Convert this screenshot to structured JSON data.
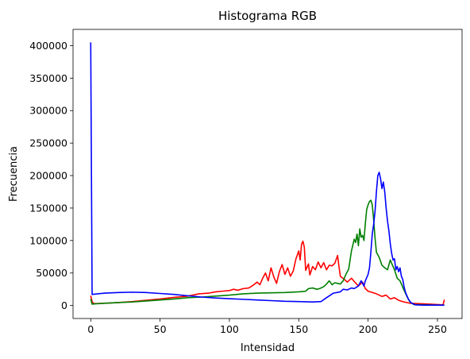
{
  "chart_data": {
    "type": "line",
    "title": "Histograma RGB",
    "xlabel": "Intensidad",
    "ylabel": "Frecuencia",
    "xlim": [
      -12.75,
      267.75
    ],
    "ylim": [
      -20000,
      425000
    ],
    "xticks": [
      0,
      50,
      100,
      150,
      200,
      250
    ],
    "yticks": [
      0,
      50000,
      100000,
      150000,
      200000,
      250000,
      300000,
      350000,
      400000
    ],
    "grid": false,
    "legend": "none",
    "series": [
      {
        "color": "#ff0000",
        "points": [
          [
            0,
            15000
          ],
          [
            1,
            6000
          ],
          [
            2,
            3000
          ],
          [
            5,
            3000
          ],
          [
            10,
            3500
          ],
          [
            20,
            4500
          ],
          [
            30,
            6000
          ],
          [
            40,
            8000
          ],
          [
            50,
            10000
          ],
          [
            60,
            12500
          ],
          [
            70,
            14500
          ],
          [
            78,
            18000
          ],
          [
            85,
            19000
          ],
          [
            90,
            21000
          ],
          [
            95,
            22000
          ],
          [
            100,
            23000
          ],
          [
            103,
            25000
          ],
          [
            106,
            23500
          ],
          [
            110,
            26000
          ],
          [
            114,
            27000
          ],
          [
            117,
            31000
          ],
          [
            120,
            36000
          ],
          [
            122,
            32000
          ],
          [
            124,
            42000
          ],
          [
            126,
            50000
          ],
          [
            128,
            38000
          ],
          [
            130,
            58000
          ],
          [
            132,
            44000
          ],
          [
            134,
            34000
          ],
          [
            136,
            52000
          ],
          [
            138,
            63000
          ],
          [
            140,
            48000
          ],
          [
            142,
            58000
          ],
          [
            144,
            45000
          ],
          [
            146,
            53000
          ],
          [
            148,
            72000
          ],
          [
            150,
            84000
          ],
          [
            151,
            70000
          ],
          [
            152,
            94000
          ],
          [
            153,
            99000
          ],
          [
            154,
            90000
          ],
          [
            155,
            54000
          ],
          [
            157,
            64000
          ],
          [
            158,
            47000
          ],
          [
            160,
            60000
          ],
          [
            162,
            55000
          ],
          [
            164,
            67000
          ],
          [
            166,
            58000
          ],
          [
            168,
            66000
          ],
          [
            170,
            55000
          ],
          [
            172,
            62000
          ],
          [
            174,
            61000
          ],
          [
            176,
            65000
          ],
          [
            178,
            77000
          ],
          [
            179,
            60000
          ],
          [
            180,
            45000
          ],
          [
            183,
            40000
          ],
          [
            185,
            36000
          ],
          [
            188,
            42000
          ],
          [
            190,
            37000
          ],
          [
            193,
            30000
          ],
          [
            196,
            36000
          ],
          [
            198,
            26000
          ],
          [
            200,
            22000
          ],
          [
            203,
            20000
          ],
          [
            206,
            18000
          ],
          [
            210,
            14000
          ],
          [
            213,
            16000
          ],
          [
            216,
            10000
          ],
          [
            219,
            12000
          ],
          [
            222,
            8000
          ],
          [
            225,
            6000
          ],
          [
            230,
            3500
          ],
          [
            240,
            2500
          ],
          [
            250,
            1500
          ],
          [
            254,
            1000
          ],
          [
            255,
            9000
          ]
        ]
      },
      {
        "color": "#008000",
        "points": [
          [
            0,
            10000
          ],
          [
            1,
            2000
          ],
          [
            3,
            2500
          ],
          [
            10,
            3500
          ],
          [
            20,
            4500
          ],
          [
            30,
            5500
          ],
          [
            40,
            7000
          ],
          [
            50,
            8500
          ],
          [
            60,
            10000
          ],
          [
            70,
            12000
          ],
          [
            80,
            13000
          ],
          [
            90,
            14500
          ],
          [
            100,
            16000
          ],
          [
            110,
            18000
          ],
          [
            120,
            19000
          ],
          [
            130,
            19500
          ],
          [
            140,
            20000
          ],
          [
            150,
            21000
          ],
          [
            155,
            22000
          ],
          [
            157,
            26000
          ],
          [
            160,
            27000
          ],
          [
            163,
            25000
          ],
          [
            165,
            26000
          ],
          [
            168,
            29000
          ],
          [
            170,
            33000
          ],
          [
            172,
            38000
          ],
          [
            174,
            32000
          ],
          [
            176,
            35000
          ],
          [
            178,
            34000
          ],
          [
            180,
            33000
          ],
          [
            182,
            38000
          ],
          [
            184,
            48000
          ],
          [
            186,
            56000
          ],
          [
            188,
            84000
          ],
          [
            190,
            102000
          ],
          [
            191,
            97000
          ],
          [
            192,
            110000
          ],
          [
            193,
            92000
          ],
          [
            194,
            118000
          ],
          [
            195,
            105000
          ],
          [
            196,
            108000
          ],
          [
            197,
            100000
          ],
          [
            198,
            126000
          ],
          [
            199,
            148000
          ],
          [
            200,
            155000
          ],
          [
            201,
            160000
          ],
          [
            202,
            162000
          ],
          [
            203,
            155000
          ],
          [
            204,
            132000
          ],
          [
            205,
            104000
          ],
          [
            206,
            82000
          ],
          [
            207,
            78000
          ],
          [
            208,
            74000
          ],
          [
            210,
            62000
          ],
          [
            212,
            58000
          ],
          [
            214,
            55000
          ],
          [
            216,
            70000
          ],
          [
            218,
            60000
          ],
          [
            219,
            55000
          ],
          [
            221,
            42000
          ],
          [
            223,
            38000
          ],
          [
            225,
            28000
          ],
          [
            228,
            14000
          ],
          [
            230,
            6000
          ],
          [
            233,
            1500
          ],
          [
            240,
            1000
          ],
          [
            250,
            500
          ],
          [
            255,
            500
          ]
        ]
      },
      {
        "color": "#0000ff",
        "points": [
          [
            0,
            405000
          ],
          [
            1,
            17000
          ],
          [
            5,
            18000
          ],
          [
            10,
            19000
          ],
          [
            20,
            20000
          ],
          [
            30,
            20500
          ],
          [
            40,
            20000
          ],
          [
            50,
            18500
          ],
          [
            60,
            17000
          ],
          [
            70,
            15000
          ],
          [
            80,
            13000
          ],
          [
            90,
            11500
          ],
          [
            100,
            10500
          ],
          [
            110,
            9500
          ],
          [
            120,
            8500
          ],
          [
            130,
            7500
          ],
          [
            140,
            6500
          ],
          [
            150,
            6000
          ],
          [
            160,
            5500
          ],
          [
            166,
            6000
          ],
          [
            170,
            12000
          ],
          [
            175,
            19000
          ],
          [
            180,
            21000
          ],
          [
            182,
            25000
          ],
          [
            185,
            24000
          ],
          [
            188,
            27000
          ],
          [
            190,
            26000
          ],
          [
            193,
            30000
          ],
          [
            195,
            38000
          ],
          [
            197,
            30000
          ],
          [
            198,
            38000
          ],
          [
            200,
            48000
          ],
          [
            201,
            58000
          ],
          [
            202,
            82000
          ],
          [
            203,
            110000
          ],
          [
            204,
            125000
          ],
          [
            205,
            145000
          ],
          [
            206,
            175000
          ],
          [
            207,
            200000
          ],
          [
            208,
            205000
          ],
          [
            209,
            195000
          ],
          [
            210,
            180000
          ],
          [
            211,
            190000
          ],
          [
            212,
            175000
          ],
          [
            213,
            150000
          ],
          [
            214,
            130000
          ],
          [
            215,
            115000
          ],
          [
            216,
            95000
          ],
          [
            217,
            80000
          ],
          [
            218,
            70000
          ],
          [
            219,
            72000
          ],
          [
            220,
            55000
          ],
          [
            221,
            60000
          ],
          [
            222,
            52000
          ],
          [
            223,
            58000
          ],
          [
            224,
            45000
          ],
          [
            225,
            40000
          ],
          [
            226,
            28000
          ],
          [
            227,
            20000
          ],
          [
            229,
            10000
          ],
          [
            231,
            4000
          ],
          [
            234,
            1000
          ],
          [
            240,
            500
          ],
          [
            255,
            500
          ]
        ]
      }
    ]
  }
}
